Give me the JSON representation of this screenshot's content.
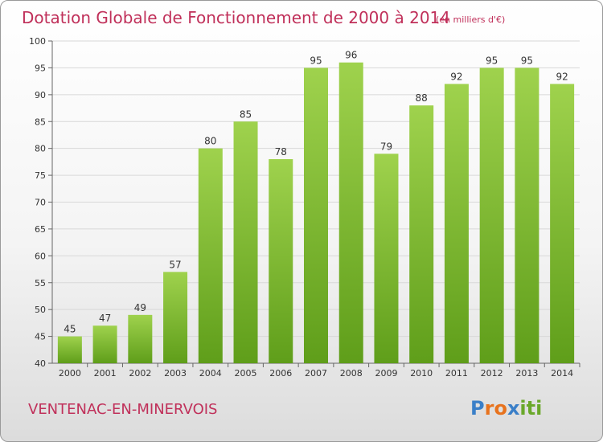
{
  "chart_data": {
    "type": "bar",
    "title": "Dotation Globale de Fonctionnement de 2000 à 2014",
    "subtitle": "(en milliers d'€)",
    "categories": [
      "2000",
      "2001",
      "2002",
      "2003",
      "2004",
      "2005",
      "2006",
      "2007",
      "2008",
      "2009",
      "2010",
      "2011",
      "2012",
      "2013",
      "2014"
    ],
    "values": [
      45,
      47,
      49,
      57,
      80,
      85,
      78,
      95,
      96,
      79,
      88,
      92,
      95,
      95,
      92
    ],
    "ylim": [
      40,
      100
    ],
    "yticks": [
      40,
      45,
      50,
      55,
      60,
      65,
      70,
      75,
      80,
      85,
      90,
      95,
      100
    ],
    "grid": true,
    "bar_color": "#7cbf2e"
  },
  "commune": "VENTENAC-EN-MINERVOIS",
  "logo": {
    "text": "Proxiti",
    "letters": [
      "P",
      "r",
      "o",
      "x",
      "i",
      "t",
      "i"
    ],
    "colors": [
      "#3a7fc8",
      "#e8731e",
      "#e8731e",
      "#3a7fc8",
      "#6aa82a",
      "#6aa82a",
      "#6aa82a"
    ]
  }
}
